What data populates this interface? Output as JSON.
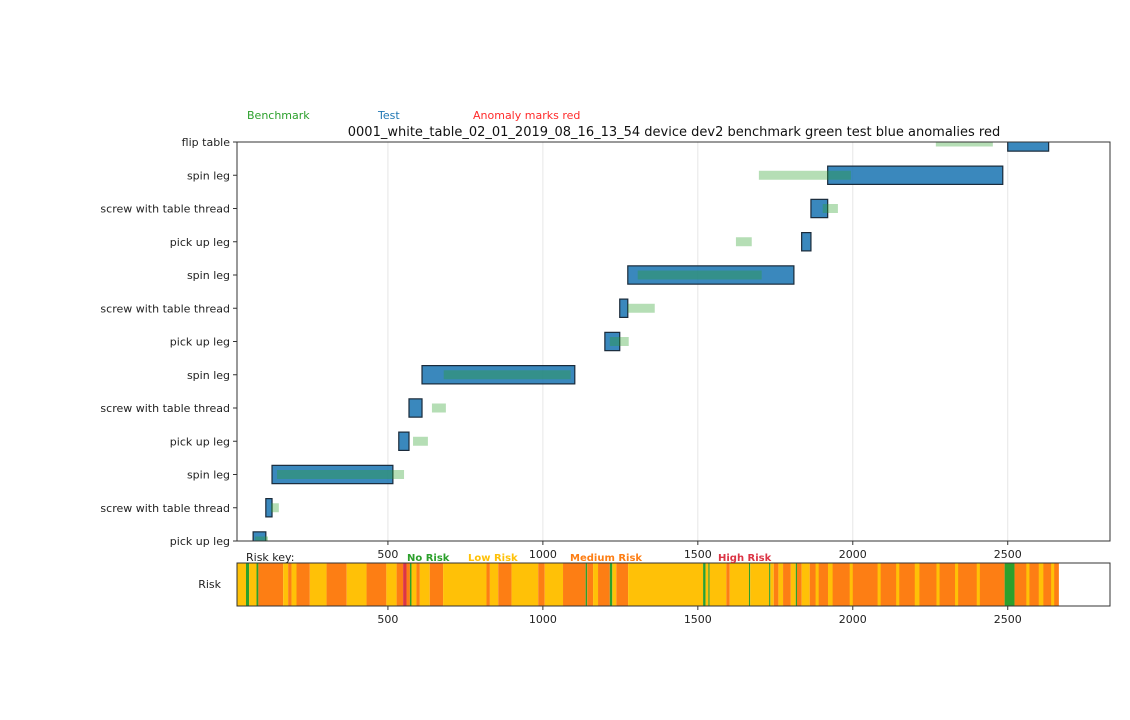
{
  "chart_data": [
    {
      "type": "gantt",
      "title": "0001_white_table_02_01_2019_08_16_13_54  device dev2  benchmark green  test blue  anomalies red",
      "legend_labels": {
        "benchmark": "Benchmark",
        "test": "Test",
        "anomaly": "Anomaly marks red"
      },
      "legend_placement": "top-left above axes",
      "categories": [
        "pick up leg",
        "screw with table thread",
        "spin leg",
        "pick up leg",
        "screw with table thread",
        "spin leg",
        "pick up leg",
        "screw with table thread",
        "spin leg",
        "pick up leg",
        "screw with table thread",
        "spin leg",
        "flip table"
      ],
      "xlim": [
        13,
        2830
      ],
      "ylim": [
        0,
        12
      ],
      "xticks": [
        500,
        1000,
        1500,
        2000,
        2500
      ],
      "grid": "vertical",
      "series": [
        {
          "name": "Test",
          "color": "#1f77b4",
          "bars": [
            [
              65,
              106
            ],
            [
              106,
              126
            ],
            [
              126,
              516
            ],
            [
              535,
              568
            ],
            [
              568,
              610
            ],
            [
              610,
              1103
            ],
            [
              1200,
              1248
            ],
            [
              1248,
              1274
            ],
            [
              1274,
              1810
            ],
            [
              1835,
              1865
            ],
            [
              1865,
              1919
            ],
            [
              1919,
              2484
            ],
            [
              2500,
              2632
            ]
          ]
        },
        {
          "name": "Benchmark",
          "color": "#2ca02c",
          "bars": [
            [
              71,
              113
            ],
            [
              123,
              148
            ],
            [
              142,
              552
            ],
            [
              581,
              629
            ],
            [
              642,
              687
            ],
            [
              680,
              1090
            ],
            [
              1216,
              1277
            ],
            [
              1274,
              1361
            ],
            [
              1306,
              1706
            ],
            [
              1623,
              1674
            ],
            [
              1903,
              1952
            ],
            [
              1697,
              1994
            ],
            [
              2268,
              2452
            ]
          ]
        }
      ]
    },
    {
      "type": "heatmap-strip",
      "ylabel": "Risk",
      "key_label": "Risk key:",
      "levels": [
        {
          "name": "No Risk",
          "color": "#2ca02c"
        },
        {
          "name": "Low Risk",
          "color": "#ffc107"
        },
        {
          "name": "Medium Risk",
          "color": "#fd7e14"
        },
        {
          "name": "High Risk",
          "color": "#dc3545"
        }
      ],
      "xlim": [
        13,
        2830
      ],
      "xticks": [
        500,
        1000,
        1500,
        2000,
        2500
      ],
      "segments": [
        [
          14,
          42,
          1
        ],
        [
          42,
          52,
          0
        ],
        [
          52,
          76,
          1
        ],
        [
          76,
          82,
          0
        ],
        [
          82,
          162,
          2
        ],
        [
          162,
          178,
          1
        ],
        [
          178,
          189,
          2
        ],
        [
          189,
          205,
          1
        ],
        [
          205,
          248,
          2
        ],
        [
          248,
          302,
          1
        ],
        [
          302,
          367,
          2
        ],
        [
          367,
          431,
          1
        ],
        [
          431,
          495,
          2
        ],
        [
          495,
          528,
          1
        ],
        [
          528,
          549,
          2
        ],
        [
          549,
          560,
          3
        ],
        [
          560,
          571,
          2
        ],
        [
          571,
          576,
          0
        ],
        [
          576,
          592,
          1
        ],
        [
          592,
          603,
          2
        ],
        [
          603,
          635,
          1
        ],
        [
          635,
          678,
          2
        ],
        [
          678,
          818,
          1
        ],
        [
          818,
          829,
          2
        ],
        [
          829,
          856,
          1
        ],
        [
          856,
          899,
          2
        ],
        [
          899,
          985,
          1
        ],
        [
          985,
          1006,
          2
        ],
        [
          1006,
          1065,
          1
        ],
        [
          1065,
          1138,
          2
        ],
        [
          1138,
          1143,
          0
        ],
        [
          1143,
          1162,
          2
        ],
        [
          1162,
          1178,
          1
        ],
        [
          1178,
          1216,
          2
        ],
        [
          1216,
          1224,
          0
        ],
        [
          1224,
          1237,
          1
        ],
        [
          1237,
          1275,
          2
        ],
        [
          1275,
          1517,
          1
        ],
        [
          1517,
          1525,
          0
        ],
        [
          1525,
          1534,
          1
        ],
        [
          1534,
          1538,
          0
        ],
        [
          1538,
          1592,
          1
        ],
        [
          1592,
          1603,
          2
        ],
        [
          1603,
          1665,
          1
        ],
        [
          1665,
          1669,
          0
        ],
        [
          1669,
          1730,
          1
        ],
        [
          1730,
          1734,
          0
        ],
        [
          1734,
          1745,
          1
        ],
        [
          1745,
          1760,
          2
        ],
        [
          1760,
          1775,
          1
        ],
        [
          1775,
          1800,
          2
        ],
        [
          1800,
          1816,
          1
        ],
        [
          1816,
          1820,
          0
        ],
        [
          1820,
          1835,
          2
        ],
        [
          1835,
          1861,
          1
        ],
        [
          1861,
          2490,
          2
        ],
        [
          1880,
          1890,
          1
        ],
        [
          1920,
          1935,
          1
        ],
        [
          1990,
          2000,
          1
        ],
        [
          2080,
          2090,
          1
        ],
        [
          2140,
          2150,
          1
        ],
        [
          2200,
          2215,
          1
        ],
        [
          2270,
          2280,
          1
        ],
        [
          2330,
          2340,
          1
        ],
        [
          2400,
          2410,
          1
        ],
        [
          2490,
          2522,
          0
        ],
        [
          2522,
          2665,
          2
        ],
        [
          2560,
          2570,
          1
        ],
        [
          2600,
          2615,
          1
        ],
        [
          2640,
          2650,
          1
        ]
      ]
    }
  ]
}
